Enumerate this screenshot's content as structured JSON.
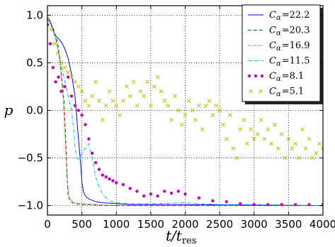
{
  "chart_data": {
    "type": "line",
    "title": "",
    "xlabel": "t/t",
    "xlabel_sub": "res",
    "ylabel": "p",
    "xlim": [
      0,
      4000
    ],
    "ylim": [
      -1.1,
      1.1
    ],
    "xticks": [
      "0",
      "500",
      "1000",
      "1500",
      "2000",
      "2500",
      "3000",
      "3500",
      "4000"
    ],
    "yticks": [
      "1.0",
      "0.5",
      "0.0",
      "−0.5",
      "−1.0"
    ],
    "ytick_values": [
      1.0,
      0.5,
      0.0,
      -0.5,
      -1.0
    ],
    "grid": true,
    "legend_position": "top-right",
    "series": [
      {
        "name": "C",
        "subscript": "α",
        "value": "=22.2",
        "style": "solid",
        "marker": "none",
        "color": "#0000ff",
        "x": [
          0,
          50,
          100,
          150,
          200,
          250,
          300,
          350,
          400,
          450,
          480,
          500,
          520,
          550,
          600,
          700,
          800,
          1000,
          1200,
          1500,
          2000,
          4000
        ],
        "y": [
          0.98,
          0.92,
          0.8,
          0.76,
          0.72,
          0.65,
          0.55,
          0.38,
          0.15,
          -0.3,
          -0.55,
          -0.75,
          -0.85,
          -0.9,
          -0.93,
          -0.96,
          -0.97,
          -0.98,
          -0.99,
          -0.99,
          -0.99,
          -1.0
        ]
      },
      {
        "name": "C",
        "subscript": "α",
        "value": "=20.3",
        "style": "dashed",
        "marker": "none",
        "color": "#008000",
        "x": [
          0,
          30,
          60,
          90,
          120,
          150,
          180,
          200,
          220,
          240,
          260,
          280,
          300,
          330,
          360,
          400,
          500,
          600,
          800,
          1000,
          1500,
          2000,
          4000
        ],
        "y": [
          0.97,
          0.95,
          0.9,
          0.85,
          0.78,
          0.7,
          0.55,
          0.4,
          0.25,
          0.1,
          -0.2,
          -0.6,
          -0.9,
          -0.95,
          -0.97,
          -0.98,
          -0.99,
          -0.99,
          -1.0,
          -1.0,
          -1.0,
          -1.0,
          -1.0
        ]
      },
      {
        "name": "C",
        "subscript": "α",
        "value": "=16.9",
        "style": "dotted",
        "marker": "none",
        "color": "#ff0000",
        "x": [
          0,
          40,
          80,
          120,
          160,
          200,
          230,
          250,
          270,
          290,
          310,
          330,
          360,
          400,
          500,
          700,
          1000,
          2000,
          4000
        ],
        "y": [
          0.96,
          0.92,
          0.85,
          0.75,
          0.6,
          0.35,
          0.1,
          -0.2,
          -0.5,
          -0.75,
          -0.88,
          -0.93,
          -0.96,
          -0.97,
          -0.98,
          -0.99,
          -1.0,
          -1.0,
          -1.0
        ]
      },
      {
        "name": "C",
        "subscript": "α",
        "value": "=11.5",
        "style": "dashdot",
        "marker": "none",
        "color": "#00bfbf",
        "x": [
          0,
          60,
          120,
          180,
          240,
          300,
          350,
          380,
          400,
          430,
          460,
          500,
          550,
          600,
          650,
          700,
          750,
          800,
          900,
          1000,
          1200,
          1500,
          2000,
          2200,
          2500,
          3000,
          4000
        ],
        "y": [
          0.96,
          0.88,
          0.75,
          0.55,
          0.35,
          0.15,
          0.0,
          -0.2,
          -0.4,
          -0.5,
          -0.52,
          -0.45,
          -0.4,
          -0.35,
          -0.5,
          -0.7,
          -0.8,
          -0.88,
          -0.95,
          -0.97,
          -0.98,
          -0.98,
          -0.97,
          -0.98,
          -0.99,
          -0.99,
          -1.0
        ]
      },
      {
        "name": "C",
        "subscript": "α",
        "value": "=8.1",
        "style": "none",
        "marker": "circle",
        "color": "#bf00bf",
        "x": [
          0,
          40,
          80,
          120,
          160,
          200,
          250,
          300,
          350,
          400,
          450,
          500,
          550,
          600,
          650,
          700,
          750,
          800,
          850,
          900,
          950,
          1000,
          1100,
          1200,
          1300,
          1400,
          1500,
          1600,
          1700,
          1800,
          1900,
          2000,
          2200,
          2400,
          2600,
          2800,
          3000,
          3200,
          3400,
          3600,
          3800,
          4000
        ],
        "y": [
          0.9,
          0.7,
          0.45,
          0.3,
          0.35,
          0.2,
          0.25,
          0.35,
          0.15,
          0.05,
          0.0,
          -0.05,
          -0.15,
          -0.3,
          -0.45,
          -0.55,
          -0.62,
          -0.68,
          -0.7,
          -0.72,
          -0.74,
          -0.76,
          -0.78,
          -0.82,
          -0.85,
          -0.9,
          -0.88,
          -0.9,
          -0.85,
          -0.87,
          -0.85,
          -0.88,
          -0.92,
          -0.95,
          -0.96,
          -0.98,
          -0.99,
          -0.99,
          -0.99,
          -0.99,
          -0.99,
          -0.99
        ]
      },
      {
        "name": "C",
        "subscript": "α",
        "value": "=5.1",
        "style": "none",
        "marker": "x",
        "color": "#bfbf00",
        "x": [
          0,
          50,
          100,
          150,
          200,
          250,
          300,
          350,
          400,
          450,
          500,
          550,
          600,
          650,
          700,
          750,
          800,
          850,
          900,
          950,
          1000,
          1050,
          1100,
          1150,
          1200,
          1250,
          1300,
          1350,
          1400,
          1450,
          1500,
          1550,
          1600,
          1650,
          1700,
          1750,
          1800,
          1850,
          1900,
          1950,
          2000,
          2050,
          2100,
          2150,
          2200,
          2250,
          2300,
          2350,
          2400,
          2450,
          2500,
          2550,
          2600,
          2650,
          2700,
          2750,
          2800,
          2850,
          2900,
          2950,
          3000,
          3050,
          3100,
          3150,
          3200,
          3250,
          3300,
          3350,
          3400,
          3450,
          3500,
          3550,
          3600,
          3650,
          3700,
          3750,
          3800,
          3850,
          3900,
          3950,
          4000
        ],
        "y": [
          0.95,
          0.85,
          0.7,
          0.6,
          0.5,
          0.45,
          0.4,
          0.35,
          0.3,
          0.25,
          0.2,
          0.1,
          0.05,
          0.15,
          0.3,
          0.1,
          -0.1,
          0.05,
          0.2,
          0.1,
          0.05,
          -0.05,
          0.1,
          0.25,
          0.15,
          0.3,
          0.05,
          0.2,
          0.15,
          0.3,
          0.05,
          0.25,
          0.35,
          0.2,
          0.1,
          0.05,
          -0.1,
          0.15,
          0.0,
          -0.15,
          -0.05,
          0.1,
          0.0,
          -0.1,
          0.05,
          -0.2,
          0.05,
          0.1,
          -0.05,
          0.05,
          0.0,
          -0.15,
          -0.3,
          -0.05,
          -0.4,
          -0.5,
          -0.2,
          -0.1,
          -0.35,
          -0.2,
          -0.3,
          -0.25,
          -0.1,
          -0.3,
          -0.2,
          -0.35,
          -0.15,
          -0.4,
          -0.25,
          -0.5,
          -0.3,
          -0.4,
          -0.35,
          -0.5,
          -0.2,
          -0.4,
          -0.3,
          -0.5,
          -0.45,
          -0.35,
          -0.4
        ]
      }
    ]
  }
}
